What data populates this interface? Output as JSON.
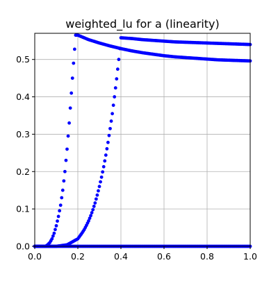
{
  "chart_data": {
    "type": "scatter",
    "title": "weighted_lu for a (linearity)",
    "xlabel": "",
    "ylabel": "",
    "xlim": [
      0.0,
      1.0
    ],
    "ylim": [
      0.0,
      0.57
    ],
    "x_ticks": [
      "0.0",
      "0.2",
      "0.4",
      "0.6",
      "0.8",
      "1.0"
    ],
    "y_ticks": [
      "0.0",
      "0.1",
      "0.2",
      "0.3",
      "0.4",
      "0.5"
    ],
    "x_tick_values": [
      0.0,
      0.2,
      0.4,
      0.6,
      0.8,
      1.0
    ],
    "y_tick_values": [
      0.0,
      0.1,
      0.2,
      0.3,
      0.4,
      0.5
    ],
    "grid": true,
    "marker_color": "#0000ff",
    "series": [
      {
        "x": [
          0.0,
          0.01,
          0.02,
          0.03,
          0.04,
          0.05,
          0.06,
          0.07,
          0.08,
          0.09,
          0.1,
          0.11,
          0.12,
          0.13,
          0.14,
          0.15,
          0.16,
          0.17,
          0.18,
          0.19,
          0.2,
          0.25,
          0.3,
          0.35,
          0.4,
          0.45,
          0.5,
          0.55,
          0.6,
          0.65,
          0.7,
          0.75,
          0.8,
          0.85,
          0.9,
          0.95,
          1.0
        ],
        "y": [
          0.0,
          0.0,
          0.0,
          0.0,
          0.0,
          0.0,
          0.004,
          0.01,
          0.02,
          0.035,
          0.055,
          0.08,
          0.11,
          0.15,
          0.2,
          0.26,
          0.33,
          0.41,
          0.49,
          0.565,
          0.565,
          0.553,
          0.544,
          0.536,
          0.529,
          0.523,
          0.518,
          0.514,
          0.51,
          0.507,
          0.505,
          0.503,
          0.501,
          0.499,
          0.498,
          0.497,
          0.496
        ]
      },
      {
        "x": [
          0.0,
          0.05,
          0.1,
          0.15,
          0.2,
          0.21,
          0.22,
          0.23,
          0.24,
          0.25,
          0.26,
          0.27,
          0.28,
          0.29,
          0.3,
          0.31,
          0.32,
          0.33,
          0.34,
          0.35,
          0.36,
          0.37,
          0.38,
          0.39,
          0.4,
          0.45,
          0.5,
          0.55,
          0.6,
          0.65,
          0.7,
          0.75,
          0.8,
          0.85,
          0.9,
          0.95,
          1.0
        ],
        "y": [
          0.0,
          0.0,
          0.0,
          0.004,
          0.02,
          0.028,
          0.036,
          0.045,
          0.056,
          0.068,
          0.082,
          0.098,
          0.116,
          0.137,
          0.16,
          0.185,
          0.213,
          0.244,
          0.278,
          0.315,
          0.355,
          0.4,
          0.448,
          0.5,
          0.558,
          0.556,
          0.553,
          0.551,
          0.549,
          0.547,
          0.546,
          0.545,
          0.544,
          0.543,
          0.542,
          0.541,
          0.54
        ]
      },
      {
        "x": [
          0.0,
          0.05,
          0.1,
          0.15,
          0.2,
          0.25,
          0.3,
          0.35,
          0.4,
          0.45,
          0.5,
          0.55,
          0.6,
          0.65,
          0.7,
          0.75,
          0.8,
          0.85,
          0.9,
          0.95,
          1.0
        ],
        "y": [
          0.0,
          0.0,
          0.0,
          0.0,
          0.0,
          0.0,
          0.0,
          0.0,
          0.0,
          0.0,
          0.0,
          0.0,
          0.0,
          0.0,
          0.0,
          0.0,
          0.0,
          0.0,
          0.0,
          0.0,
          0.0
        ]
      }
    ]
  }
}
